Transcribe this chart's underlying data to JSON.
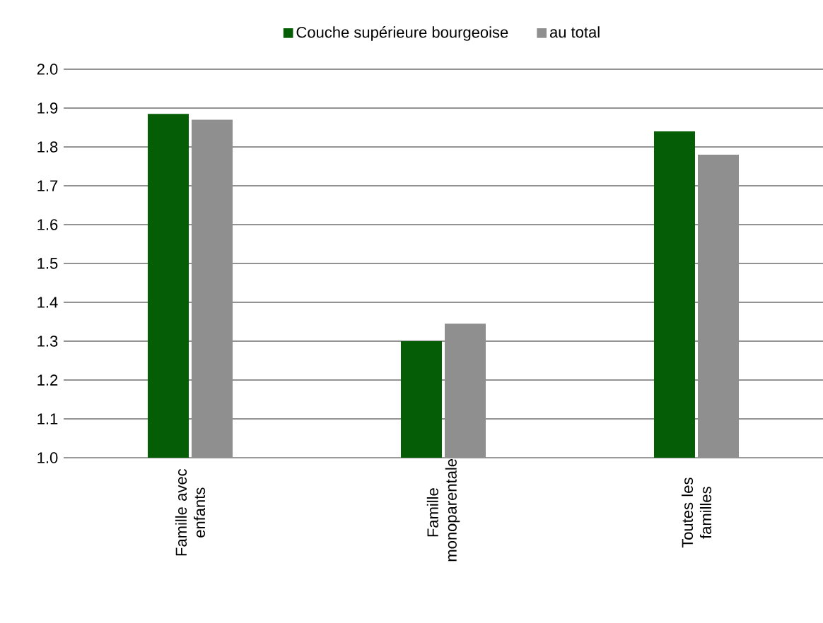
{
  "chart_data": {
    "type": "bar",
    "categories": [
      "Famille avec enfants",
      "Famille monoparentale",
      "Toutes les familles"
    ],
    "series": [
      {
        "name": "Couche supérieure bourgeoise",
        "color": "#055e05",
        "values": [
          1.885,
          1.3,
          1.84
        ]
      },
      {
        "name": "au total",
        "color": "#8f8f8f",
        "values": [
          1.87,
          1.345,
          1.78
        ]
      }
    ],
    "ylim": [
      1.0,
      2.0
    ],
    "yticks": [
      {
        "value": 1.0,
        "label": "1.0"
      },
      {
        "value": 1.1,
        "label": "1.1"
      },
      {
        "value": 1.2,
        "label": "1.2"
      },
      {
        "value": 1.3,
        "label": "1.3"
      },
      {
        "value": 1.4,
        "label": "1.4"
      },
      {
        "value": 1.5,
        "label": "1.5"
      },
      {
        "value": 1.6,
        "label": "1.6"
      },
      {
        "value": 1.7,
        "label": "1.7"
      },
      {
        "value": 1.8,
        "label": "1.8"
      },
      {
        "value": 1.9,
        "label": "1.9"
      },
      {
        "value": 2.0,
        "label": "2.0"
      }
    ],
    "grid": "y",
    "legend": "top"
  }
}
